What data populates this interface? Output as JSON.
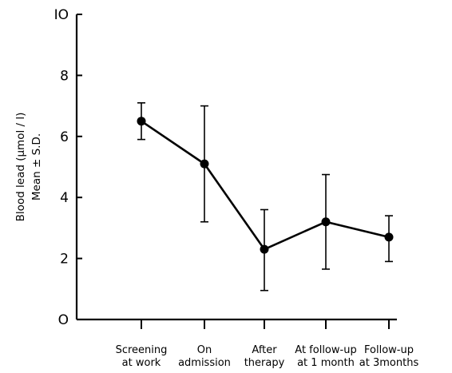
{
  "chart_data": {
    "type": "line",
    "ylabel": [
      "Blood lead (µmol / l)",
      "Mean ± S.D."
    ],
    "xlabel": "",
    "ylim": [
      0,
      10
    ],
    "yticks": [
      0,
      2,
      4,
      6,
      8,
      10
    ],
    "ytick_labels": [
      "O",
      "2",
      "4",
      "6",
      "8",
      "IO"
    ],
    "categories": [
      [
        "Screening",
        "at work"
      ],
      [
        "On",
        "admission"
      ],
      [
        "After",
        "therapy"
      ],
      [
        "At follow-up",
        "at 1 month"
      ],
      [
        "Follow-up",
        "at 3months"
      ]
    ],
    "series": [
      {
        "values": [
          6.5,
          5.1,
          2.3,
          3.2,
          2.7
        ],
        "sd_low": [
          5.9,
          3.2,
          0.95,
          1.65,
          1.9
        ],
        "sd_high": [
          7.1,
          7.0,
          3.6,
          4.75,
          3.4
        ]
      }
    ],
    "grid": false,
    "colors": {
      "ink": "#000000",
      "background": "#ffffff"
    }
  }
}
